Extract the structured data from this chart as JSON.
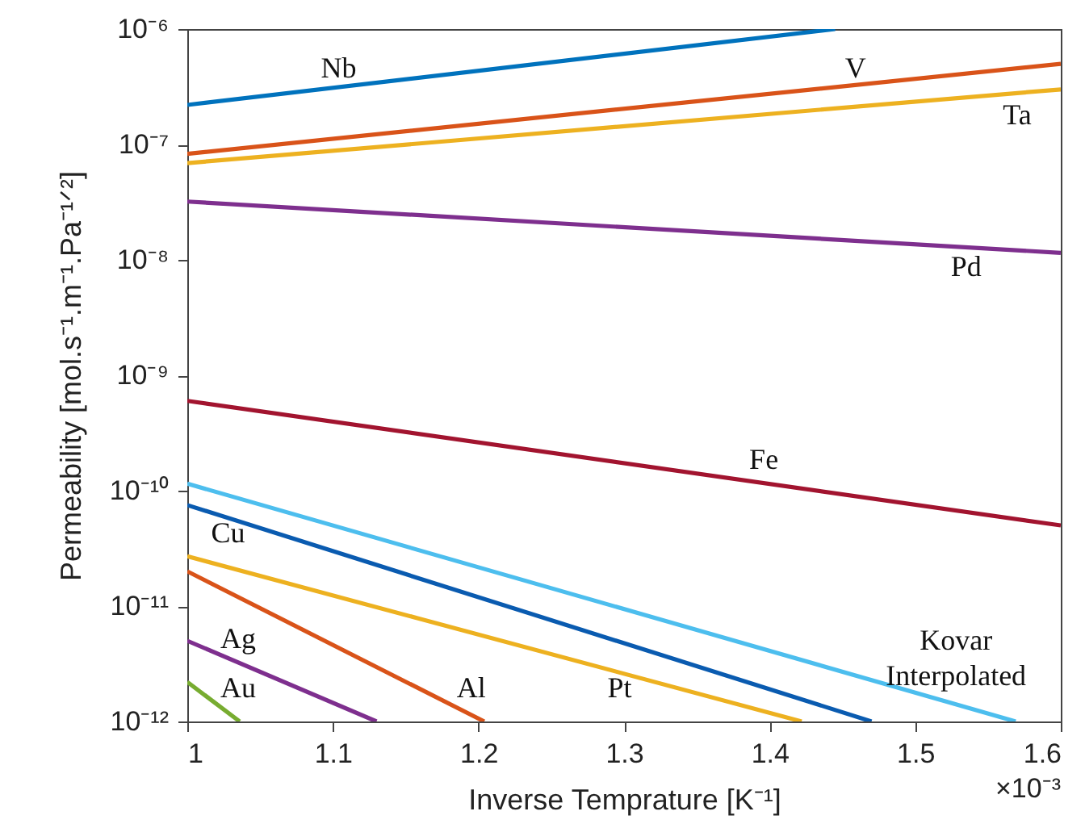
{
  "chart_data": {
    "type": "line",
    "xlabel": "Inverse Temprature [K⁻¹]",
    "ylabel": "Permeability [mol.s⁻¹.m⁻¹.Pa⁻¹ᐟ²]",
    "log": "y",
    "grid": false,
    "line_style": "solid",
    "xlim": [
      1,
      1.6
    ],
    "xticks": [
      1,
      1.1,
      1.2,
      1.3,
      1.4,
      1.5,
      1.6
    ],
    "ylim": [
      1e-12,
      1e-06
    ],
    "yticks": [
      {
        "value": 1e-12,
        "label": "10⁻¹²"
      },
      {
        "value": 1e-11,
        "label": "10⁻¹¹"
      },
      {
        "value": 1e-10,
        "label": "10⁻¹⁰"
      },
      {
        "value": 1e-09,
        "label": "10⁻⁹"
      },
      {
        "value": 1e-08,
        "label": "10⁻⁸"
      },
      {
        "value": 1e-07,
        "label": "10⁻⁷"
      },
      {
        "value": 1e-06,
        "label": "10⁻⁶"
      }
    ],
    "series": [
      {
        "name": "Nb",
        "color": "#0072bd",
        "x": [
          1,
          1.445
        ],
        "values": [
          2.2e-07,
          1e-06
        ]
      },
      {
        "name": "V",
        "color": "#d95319",
        "x": [
          1,
          1.6
        ],
        "values": [
          8.3e-08,
          5e-07
        ]
      },
      {
        "name": "Ta",
        "color": "#edb120",
        "x": [
          1,
          1.6
        ],
        "values": [
          6.9e-08,
          3e-07
        ]
      },
      {
        "name": "Pd",
        "color": "#7e2f8e",
        "x": [
          1,
          1.6
        ],
        "values": [
          3.2e-08,
          1.15e-08
        ]
      },
      {
        "name": "Fe",
        "color": "#a2142f",
        "x": [
          1,
          1.6
        ],
        "values": [
          6e-10,
          5e-11
        ]
      },
      {
        "name": "Kovar Interpolated",
        "color": "#4dbeee",
        "x": [
          1,
          1.569
        ],
        "values": [
          1.15e-10,
          1e-12
        ]
      },
      {
        "name": "Cu",
        "color": "#0a5bb0",
        "x": [
          1,
          1.47
        ],
        "values": [
          7.5e-11,
          1e-12
        ]
      },
      {
        "name": "Pt",
        "color": "#edb120",
        "x": [
          1,
          1.422
        ],
        "values": [
          2.7e-11,
          1e-12
        ]
      },
      {
        "name": "Al",
        "color": "#d95319",
        "x": [
          1,
          1.204
        ],
        "values": [
          2e-11,
          1e-12
        ]
      },
      {
        "name": "Ag",
        "color": "#7e2f8e",
        "x": [
          1,
          1.13
        ],
        "values": [
          5e-12,
          1e-12
        ]
      },
      {
        "name": "Au",
        "color": "#77ac30",
        "x": [
          1,
          1.036
        ],
        "values": [
          2.2e-12,
          1e-12
        ]
      }
    ],
    "annotations": [
      "×10⁻³"
    ]
  }
}
